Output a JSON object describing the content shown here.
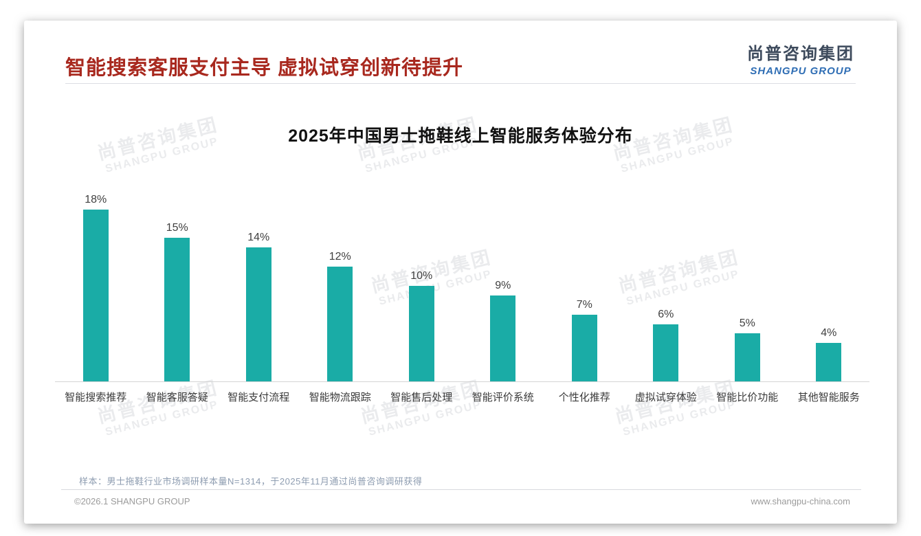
{
  "page": {
    "main_title": "智能搜索客服支付主导 虚拟试穿创新待提升",
    "note": "样本：男士拖鞋行业市场调研样本量N=1314，于2025年11月通过尚普咨询调研获得",
    "footer_left": "©2026.1 SHANGPU GROUP",
    "footer_right": "www.shangpu-china.com"
  },
  "logo": {
    "cn": "尚普咨询集团",
    "en": "SHANGPU GROUP"
  },
  "watermark": {
    "cn": "尚普咨询集团",
    "en": "SHANGPU GROUP"
  },
  "colors": {
    "bar": "#1aaca6",
    "title_red": "#a8281e",
    "logo_navy": "#3d4a5c",
    "logo_blue": "#2e6db4"
  },
  "chart_data": {
    "type": "bar",
    "title": "2025年中国男士拖鞋线上智能服务体验分布",
    "categories": [
      "智能搜索推荐",
      "智能客服答疑",
      "智能支付流程",
      "智能物流跟踪",
      "智能售后处理",
      "智能评价系统",
      "个性化推荐",
      "虚拟试穿体验",
      "智能比价功能",
      "其他智能服务"
    ],
    "values": [
      18,
      15,
      14,
      12,
      10,
      9,
      7,
      6,
      5,
      4
    ],
    "unit": "%",
    "xlabel": "",
    "ylabel": "",
    "ylim": [
      0,
      20
    ],
    "grid": false,
    "legend": false,
    "data_labels": true
  }
}
